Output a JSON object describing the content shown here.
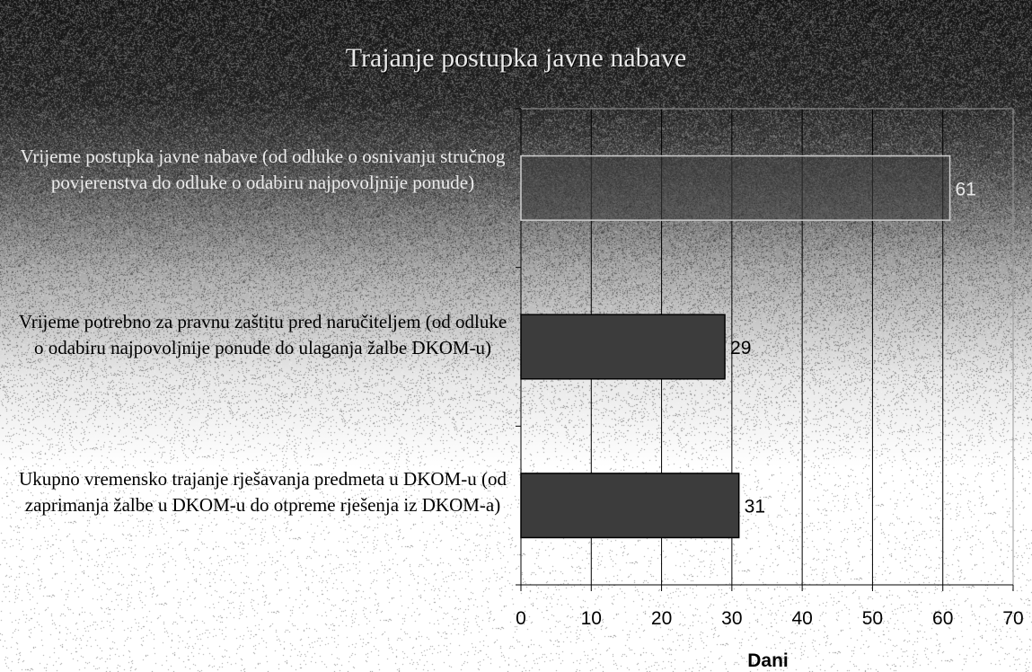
{
  "chart_data": {
    "type": "bar",
    "orientation": "horizontal",
    "title": "Trajanje postupka javne nabave",
    "xlabel": "Dani",
    "ylabel": "",
    "xlim": [
      0,
      70
    ],
    "ticks": [
      "0",
      "10",
      "20",
      "30",
      "40",
      "50",
      "60",
      "70"
    ],
    "grid": true,
    "legend": "none",
    "categories": [
      "Vrijeme postupka javne nabave (od odluke o osnivanju stručnog povjerenstva do odluke o odabiru najpovoljnije ponude)",
      "Vrijeme potrebno za pravnu zaštitu pred naručiteljem (od odluke o odabiru najpovoljnije ponude do ulaganja žalbe DKOM-u)",
      "Ukupno vremensko trajanje rješavanja predmeta u DKOM-u (od zaprimanja žalbe u DKOM-u do otpreme rješenja iz DKOM-a)"
    ],
    "values": [
      61,
      29,
      31
    ],
    "data_labels": [
      "61",
      "29",
      "31"
    ],
    "colors": {
      "bar": "#3c3c3c",
      "bar_edge": "#000000"
    }
  }
}
